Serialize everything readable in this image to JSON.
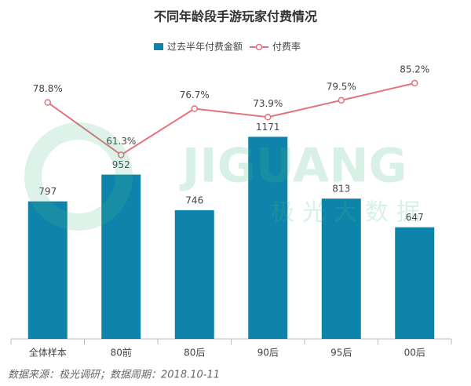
{
  "chart_data": {
    "type": "bar",
    "title": "不同年龄段手游玩家付费情况",
    "categories": [
      "全体样本",
      "80前",
      "80后",
      "90后",
      "95后",
      "00后"
    ],
    "series": [
      {
        "name": "过去半年付费金额",
        "type": "bar",
        "color": "#0f84aa",
        "values": [
          797,
          952,
          746,
          1171,
          813,
          647
        ]
      },
      {
        "name": "付费率",
        "type": "line",
        "axis": "y2",
        "color": "#e2737c",
        "values": [
          78.8,
          61.3,
          76.7,
          73.9,
          79.5,
          85.2
        ],
        "value_labels": [
          "78.8%",
          "61.3%",
          "76.7%",
          "73.9%",
          "79.5%",
          "85.2%"
        ]
      }
    ],
    "ylim": [
      0,
      1600
    ],
    "y2lim": [
      0,
      92
    ],
    "grid": false,
    "legend": "top",
    "watermark": "JIGUANG",
    "watermark_cn": "极光大数据",
    "source": "数据来源：极光调研；数据周期：2018.10-11"
  }
}
